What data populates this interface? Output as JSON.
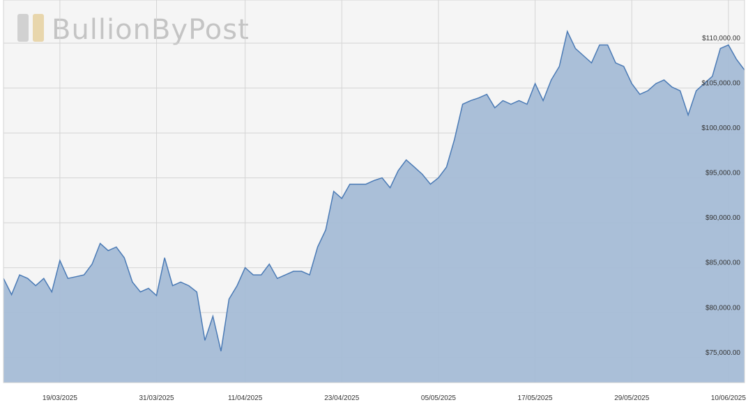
{
  "chart_data": {
    "type": "area",
    "watermark": "BullionByPost",
    "x": [
      "12/03/2025",
      "13/03/2025",
      "14/03/2025",
      "15/03/2025",
      "16/03/2025",
      "17/03/2025",
      "18/03/2025",
      "19/03/2025",
      "20/03/2025",
      "21/03/2025",
      "22/03/2025",
      "23/03/2025",
      "24/03/2025",
      "25/03/2025",
      "26/03/2025",
      "27/03/2025",
      "28/03/2025",
      "29/03/2025",
      "30/03/2025",
      "31/03/2025",
      "01/04/2025",
      "02/04/2025",
      "03/04/2025",
      "04/04/2025",
      "05/04/2025",
      "06/04/2025",
      "07/04/2025",
      "08/04/2025",
      "09/04/2025",
      "10/04/2025",
      "11/04/2025",
      "12/04/2025",
      "13/04/2025",
      "14/04/2025",
      "15/04/2025",
      "16/04/2025",
      "17/04/2025",
      "18/04/2025",
      "19/04/2025",
      "20/04/2025",
      "21/04/2025",
      "22/04/2025",
      "23/04/2025",
      "24/04/2025",
      "25/04/2025",
      "26/04/2025",
      "27/04/2025",
      "28/04/2025",
      "29/04/2025",
      "30/04/2025",
      "01/05/2025",
      "02/05/2025",
      "03/05/2025",
      "04/05/2025",
      "05/05/2025",
      "06/05/2025",
      "07/05/2025",
      "08/05/2025",
      "09/05/2025",
      "10/05/2025",
      "11/05/2025",
      "12/05/2025",
      "13/05/2025",
      "14/05/2025",
      "15/05/2025",
      "16/05/2025",
      "17/05/2025",
      "18/05/2025",
      "19/05/2025",
      "20/05/2025",
      "21/05/2025",
      "22/05/2025",
      "23/05/2025",
      "24/05/2025",
      "25/05/2025",
      "26/05/2025",
      "27/05/2025",
      "28/05/2025",
      "29/05/2025",
      "30/05/2025",
      "31/05/2025",
      "01/06/2025",
      "02/06/2025",
      "03/06/2025",
      "04/06/2025",
      "05/06/2025",
      "06/06/2025",
      "07/06/2025",
      "08/06/2025",
      "09/06/2025",
      "10/06/2025",
      "11/06/2025",
      "12/06/2025"
    ],
    "series": [
      {
        "color": "#4a7ab5",
        "fill": "#a5bcd6",
        "values": [
          83800,
          82000,
          84200,
          83800,
          83000,
          83800,
          82300,
          85800,
          83800,
          84000,
          84200,
          85400,
          87700,
          86900,
          87300,
          86100,
          83400,
          82300,
          82700,
          81900,
          86100,
          83000,
          83400,
          83000,
          82300,
          76900,
          79600,
          75700,
          81500,
          83000,
          85000,
          84200,
          84200,
          85400,
          83800,
          84200,
          84600,
          84600,
          84200,
          87300,
          89200,
          93500,
          92700,
          94300,
          94300,
          94300,
          94700,
          95000,
          93900,
          95800,
          97000,
          96200,
          95400,
          94300,
          95000,
          96200,
          99300,
          103200,
          103600,
          103900,
          104300,
          102800,
          103600,
          103200,
          103600,
          103200,
          105500,
          103600,
          105900,
          107400,
          111300,
          109400,
          108600,
          107800,
          109800,
          109800,
          107800,
          107400,
          105500,
          104300,
          104700,
          105500,
          105900,
          105100,
          104700,
          102000,
          104700,
          105500,
          106300,
          109400,
          109800,
          108200,
          107000
        ]
      }
    ],
    "xlim": [
      "12/03/2025",
      "12/06/2025"
    ],
    "xticks": [
      "19/03/2025",
      "31/03/2025",
      "11/04/2025",
      "23/04/2025",
      "05/05/2025",
      "17/05/2025",
      "29/05/2025",
      "10/06/2025"
    ],
    "ylim": [
      72200,
      114800
    ],
    "yticks": [
      {
        "value": 75000,
        "label": "$75,000.00"
      },
      {
        "value": 80000,
        "label": "$80,000.00"
      },
      {
        "value": 85000,
        "label": "$85,000.00"
      },
      {
        "value": 90000,
        "label": "$90,000.00"
      },
      {
        "value": 95000,
        "label": "$95,000.00"
      },
      {
        "value": 100000,
        "label": "$100,000.00"
      },
      {
        "value": 105000,
        "label": "$105,000.00"
      },
      {
        "value": 110000,
        "label": "$110,000.00"
      }
    ],
    "grid": true
  }
}
